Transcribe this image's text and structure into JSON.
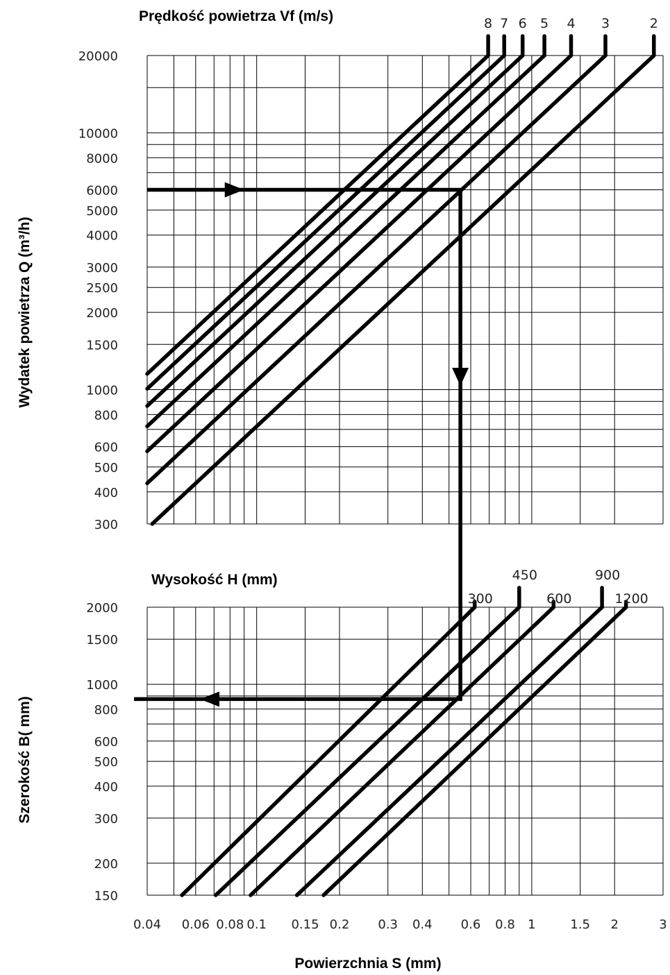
{
  "chart_data": {
    "type": "line",
    "x_axis": {
      "label": "Powierzchnia S (mm)",
      "scale": "log",
      "range": [
        0.04,
        3
      ],
      "ticks": [
        0.04,
        0.06,
        0.08,
        0.1,
        0.15,
        0.2,
        0.3,
        0.4,
        0.6,
        0.8,
        1,
        1.5,
        2,
        3
      ],
      "tick_labels": [
        "0.04",
        "0.06",
        "0.08",
        "0.1",
        "0.15",
        "0.2",
        "0.3",
        "0.4",
        "0.6",
        "0.8",
        "1",
        "1.5",
        "2",
        "3"
      ],
      "gridlines": [
        0.04,
        0.05,
        0.06,
        0.07,
        0.08,
        0.09,
        0.1,
        0.15,
        0.2,
        0.3,
        0.4,
        0.5,
        0.6,
        0.7,
        0.8,
        0.9,
        1,
        1.5,
        2,
        3
      ]
    },
    "top_panel": {
      "title": "Prędkość powietrza Vf (m/s)",
      "ylabel": "Wydatek powietrza Q (m³/h)",
      "y_scale": "log",
      "ylim": [
        300,
        20000
      ],
      "y_ticks": [
        300,
        400,
        500,
        600,
        800,
        1000,
        1500,
        2000,
        2500,
        3000,
        4000,
        5000,
        6000,
        8000,
        10000,
        20000
      ],
      "y_tick_labels": [
        "300",
        "400",
        "500",
        "600",
        "800",
        "1000",
        "1500",
        "2000",
        "2500",
        "3000",
        "4000",
        "5000",
        "6000",
        "8000",
        "10000",
        "20000"
      ],
      "y_gridlines": [
        300,
        400,
        500,
        600,
        700,
        800,
        900,
        1000,
        1500,
        2000,
        2500,
        3000,
        4000,
        5000,
        6000,
        7000,
        8000,
        9000,
        10000,
        15000,
        20000
      ],
      "series": [
        {
          "name": "8",
          "points": [
            [
              0.04,
              1152
            ],
            [
              0.694,
              20000
            ]
          ]
        },
        {
          "name": "7",
          "points": [
            [
              0.04,
              1008
            ],
            [
              0.794,
              20000
            ]
          ]
        },
        {
          "name": "6",
          "points": [
            [
              0.04,
              864
            ],
            [
              0.926,
              20000
            ]
          ]
        },
        {
          "name": "5",
          "points": [
            [
              0.04,
              720
            ],
            [
              1.111,
              20000
            ]
          ]
        },
        {
          "name": "4",
          "points": [
            [
              0.04,
              576
            ],
            [
              1.389,
              20000
            ]
          ]
        },
        {
          "name": "3",
          "points": [
            [
              0.04,
              432
            ],
            [
              1.852,
              20000
            ]
          ]
        },
        {
          "name": "2",
          "points": [
            [
              0.0417,
              300
            ],
            [
              2.778,
              20000
            ]
          ]
        }
      ]
    },
    "bottom_panel": {
      "title": "Wysokość H (mm)",
      "ylabel": "Szerokość  B( mm)",
      "y_scale": "log",
      "ylim": [
        150,
        2000
      ],
      "y_ticks": [
        150,
        200,
        300,
        400,
        500,
        600,
        800,
        1000,
        1500,
        2000
      ],
      "y_tick_labels": [
        "150",
        "200",
        "300",
        "400",
        "500",
        "600",
        "800",
        "1000",
        "1500",
        "2000"
      ],
      "y_gridlines": [
        150,
        200,
        300,
        400,
        500,
        600,
        700,
        800,
        900,
        1000,
        1500,
        2000
      ],
      "series": [
        {
          "name": "300",
          "points": [
            [
              0.0535,
              150
            ],
            [
              0.62,
              2000
            ]
          ]
        },
        {
          "name": "450",
          "points": [
            [
              0.071,
              150
            ],
            [
              0.9,
              2000
            ]
          ]
        },
        {
          "name": "600",
          "points": [
            [
              0.095,
              150
            ],
            [
              1.2,
              2000
            ]
          ]
        },
        {
          "name": "900",
          "points": [
            [
              0.14,
              150
            ],
            [
              1.8,
              2000
            ]
          ]
        },
        {
          "name": "1200",
          "points": [
            [
              0.175,
              150
            ],
            [
              2.2,
              2000
            ]
          ]
        }
      ]
    },
    "example_path": {
      "q": 6000,
      "s": 0.55,
      "b": 875
    }
  }
}
